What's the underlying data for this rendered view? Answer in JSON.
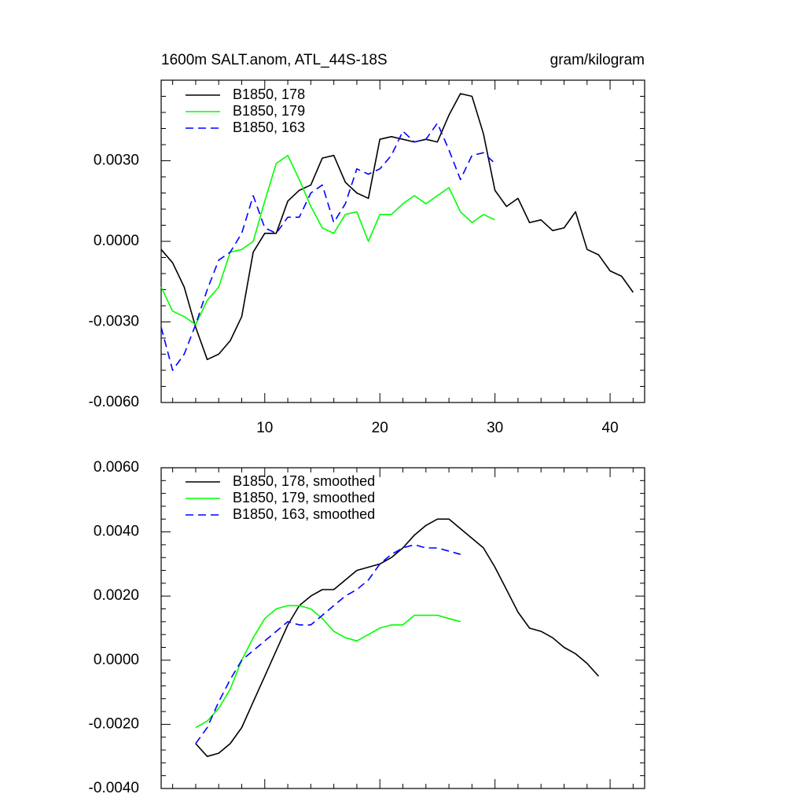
{
  "chart_data": [
    {
      "type": "line",
      "title": "1600m SALT.anom, ATL_44S-18S",
      "units": "gram/kilogram",
      "xlim": [
        1,
        43
      ],
      "ylim": [
        -0.006,
        0.006
      ],
      "xticks": [
        10,
        20,
        30,
        40
      ],
      "yticks": [
        -0.006,
        -0.003,
        0.0,
        0.003
      ],
      "ytick_labels": [
        "-0.0060",
        "-0.0030",
        "0.0000",
        "0.0030"
      ],
      "series": [
        {
          "name": "B1850, 178",
          "color": "#000000",
          "dash": "solid",
          "x": [
            1,
            2,
            3,
            4,
            5,
            6,
            7,
            8,
            9,
            10,
            11,
            12,
            13,
            14,
            15,
            16,
            17,
            18,
            19,
            20,
            21,
            22,
            23,
            24,
            25,
            26,
            27,
            28,
            29,
            30,
            31,
            32,
            33,
            34,
            35,
            36,
            37,
            38,
            39,
            40,
            41,
            42
          ],
          "values": [
            -0.0003,
            -0.0008,
            -0.0017,
            -0.0032,
            -0.0044,
            -0.0042,
            -0.0037,
            -0.0028,
            -0.0004,
            0.0003,
            0.0003,
            0.0015,
            0.0019,
            0.0021,
            0.0031,
            0.0032,
            0.0022,
            0.0018,
            0.0016,
            0.0038,
            0.0039,
            0.0038,
            0.0037,
            0.0038,
            0.0037,
            0.0047,
            0.0055,
            0.0054,
            0.004,
            0.0019,
            0.0013,
            0.0016,
            0.0007,
            0.0008,
            0.0004,
            0.0005,
            0.0011,
            -0.0003,
            -0.0005,
            -0.0011,
            -0.0013,
            -0.0019
          ]
        },
        {
          "name": "B1850, 179",
          "color": "#00ff00",
          "dash": "solid",
          "x": [
            1,
            2,
            3,
            4,
            5,
            6,
            7,
            8,
            9,
            10,
            11,
            12,
            13,
            14,
            15,
            16,
            17,
            18,
            19,
            20,
            21,
            22,
            23,
            24,
            25,
            26,
            27,
            28,
            29,
            30
          ],
          "values": [
            -0.0017,
            -0.0026,
            -0.0028,
            -0.0031,
            -0.0022,
            -0.0017,
            -0.0004,
            -0.0003,
            0.0,
            0.0015,
            0.0029,
            0.0032,
            0.0023,
            0.0013,
            0.0005,
            0.0003,
            0.001,
            0.0011,
            0.0,
            0.001,
            0.001,
            0.0014,
            0.0017,
            0.0014,
            0.0017,
            0.002,
            0.0011,
            0.0007,
            0.001,
            0.0008
          ]
        },
        {
          "name": "B1850, 163",
          "color": "#0000ff",
          "dash": "dashed",
          "x": [
            1,
            2,
            3,
            4,
            5,
            6,
            7,
            8,
            9,
            10,
            11,
            12,
            13,
            14,
            15,
            16,
            17,
            18,
            19,
            20,
            21,
            22,
            23,
            24,
            25,
            26,
            27,
            28,
            29,
            30
          ],
          "values": [
            -0.0032,
            -0.0048,
            -0.0042,
            -0.0031,
            -0.0018,
            -0.0007,
            -0.0004,
            0.0003,
            0.0017,
            0.0005,
            0.0003,
            0.0009,
            0.0009,
            0.0018,
            0.0021,
            0.0007,
            0.0014,
            0.0027,
            0.0025,
            0.0027,
            0.0032,
            0.0041,
            0.0037,
            0.0038,
            0.0044,
            0.0034,
            0.0023,
            0.0032,
            0.0033,
            0.0029
          ]
        }
      ]
    },
    {
      "type": "line",
      "title": "",
      "xlim": [
        1,
        43
      ],
      "ylim": [
        -0.004,
        0.006
      ],
      "xticks": [
        10,
        20,
        30,
        40
      ],
      "yticks": [
        -0.004,
        -0.002,
        0.0,
        0.002,
        0.004,
        0.006
      ],
      "ytick_labels": [
        "-0.0040",
        "-0.0020",
        "0.0000",
        "0.0020",
        "0.0040",
        "0.0060"
      ],
      "series": [
        {
          "name": "B1850, 178, smoothed",
          "color": "#000000",
          "dash": "solid",
          "x": [
            4,
            5,
            6,
            7,
            8,
            9,
            10,
            11,
            12,
            13,
            14,
            15,
            16,
            17,
            18,
            19,
            20,
            21,
            22,
            23,
            24,
            25,
            26,
            27,
            28,
            29,
            30,
            31,
            32,
            33,
            34,
            35,
            36,
            37,
            38,
            39
          ],
          "values": [
            -0.0026,
            -0.003,
            -0.0029,
            -0.0026,
            -0.0021,
            -0.0013,
            -0.0005,
            0.0003,
            0.0011,
            0.0017,
            0.002,
            0.0022,
            0.0022,
            0.0025,
            0.0028,
            0.0029,
            0.003,
            0.0032,
            0.0035,
            0.0039,
            0.0042,
            0.0044,
            0.0044,
            0.0041,
            0.0038,
            0.0035,
            0.0029,
            0.0022,
            0.0015,
            0.001,
            0.0009,
            0.0007,
            0.0004,
            0.0002,
            -0.0001,
            -0.0005
          ]
        },
        {
          "name": "B1850, 179, smoothed",
          "color": "#00ff00",
          "dash": "solid",
          "x": [
            4,
            5,
            6,
            7,
            8,
            9,
            10,
            11,
            12,
            13,
            14,
            15,
            16,
            17,
            18,
            19,
            20,
            21,
            22,
            23,
            24,
            25,
            26,
            27
          ],
          "values": [
            -0.0021,
            -0.0019,
            -0.0015,
            -0.0009,
            0.0,
            0.0007,
            0.0013,
            0.0016,
            0.0017,
            0.0017,
            0.0016,
            0.0013,
            0.0009,
            0.0007,
            0.0006,
            0.0008,
            0.001,
            0.0011,
            0.0011,
            0.0014,
            0.0014,
            0.0014,
            0.0013,
            0.0012
          ]
        },
        {
          "name": "B1850, 163, smoothed",
          "color": "#0000ff",
          "dash": "dashed",
          "x": [
            4,
            5,
            6,
            7,
            8,
            9,
            10,
            11,
            12,
            13,
            14,
            15,
            16,
            17,
            18,
            19,
            20,
            21,
            22,
            23,
            24,
            25,
            26,
            27
          ],
          "values": [
            -0.0026,
            -0.0021,
            -0.0013,
            -0.0006,
            0.0,
            0.0003,
            0.0006,
            0.0009,
            0.0012,
            0.0011,
            0.0011,
            0.0014,
            0.0017,
            0.002,
            0.0022,
            0.0025,
            0.003,
            0.0033,
            0.0035,
            0.0036,
            0.0035,
            0.0035,
            0.0034,
            0.0033
          ]
        }
      ]
    }
  ]
}
